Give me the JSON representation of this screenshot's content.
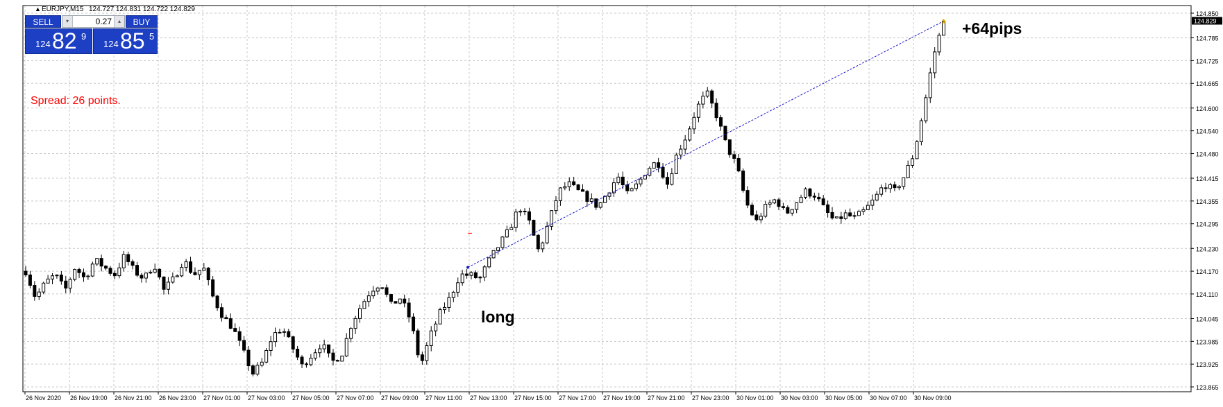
{
  "header": {
    "triangle": "▲",
    "symbol": "EURJPY,M15",
    "ohlc": "124.727 124.831 124.722 124.829"
  },
  "one_click": {
    "sell_label": "SELL",
    "buy_label": "BUY",
    "lot": "0.27",
    "down_arrow": "▾",
    "up_arrow": "▴",
    "sell_small": "124",
    "sell_big": "82",
    "sell_sup": "9",
    "buy_small": "124",
    "buy_big": "85",
    "buy_sup": "5"
  },
  "spread_text": "Spread: 26 points.",
  "annotations": {
    "long": "long",
    "pips": "+64pips"
  },
  "colors": {
    "grid": "#c8c8c8",
    "candle": "#000000",
    "trendline": "#1a1acc",
    "spread": "#ff0000",
    "panel": "#1d3fc4",
    "current_price_bg": "#000000"
  },
  "chart_data": {
    "type": "candlestick",
    "symbol": "EURJPY",
    "timeframe": "M15",
    "ylim": [
      123.865,
      124.85
    ],
    "y_ticks": [
      "124.850",
      "124.785",
      "124.725",
      "124.665",
      "124.600",
      "124.540",
      "124.480",
      "124.415",
      "124.355",
      "124.295",
      "124.230",
      "124.170",
      "124.110",
      "124.045",
      "123.985",
      "123.925",
      "123.865"
    ],
    "current_price": "124.829",
    "x_ticks": [
      "26 Nov 2020",
      "26 Nov 19:00",
      "26 Nov 21:00",
      "26 Nov 23:00",
      "27 Nov 01:00",
      "27 Nov 03:00",
      "27 Nov 05:00",
      "27 Nov 07:00",
      "27 Nov 09:00",
      "27 Nov 11:00",
      "27 Nov 13:00",
      "27 Nov 15:00",
      "27 Nov 17:00",
      "27 Nov 19:00",
      "27 Nov 21:00",
      "27 Nov 23:00",
      "30 Nov 01:00",
      "30 Nov 03:00",
      "30 Nov 05:00",
      "30 Nov 07:00",
      "30 Nov 09:00"
    ],
    "price_anchors": [
      124.17,
      124.1,
      124.14,
      124.16,
      124.12,
      124.18,
      124.15,
      124.2,
      124.18,
      124.16,
      124.21,
      124.17,
      124.15,
      124.19,
      124.12,
      124.15,
      124.2,
      124.16,
      124.18,
      124.1,
      124.05,
      124.02,
      123.96,
      123.9,
      123.93,
      124.0,
      124.02,
      123.97,
      123.92,
      123.95,
      123.98,
      123.93,
      123.95,
      124.03,
      124.08,
      124.12,
      124.14,
      124.08,
      124.1,
      124.04,
      123.92,
      124.0,
      124.06,
      124.1,
      124.16,
      124.16,
      124.15,
      124.2,
      124.24,
      124.28,
      124.34,
      124.3,
      124.22,
      124.3,
      124.38,
      124.4,
      124.38,
      124.36,
      124.34,
      124.38,
      124.42,
      124.37,
      124.4,
      124.44,
      124.46,
      124.4,
      124.48,
      124.53,
      124.6,
      124.64,
      124.58,
      124.5,
      124.45,
      124.35,
      124.3,
      124.34,
      124.36,
      124.32,
      124.35,
      124.38,
      124.37,
      124.33,
      124.3,
      124.32,
      124.31,
      124.33,
      124.36,
      124.4,
      124.38,
      124.42,
      124.48,
      124.6,
      124.74,
      124.829
    ],
    "trendline": {
      "from": {
        "x": "27 Nov 12:30",
        "y": 124.18
      },
      "to": {
        "x": "30 Nov 09:30",
        "y": 124.829
      }
    }
  }
}
